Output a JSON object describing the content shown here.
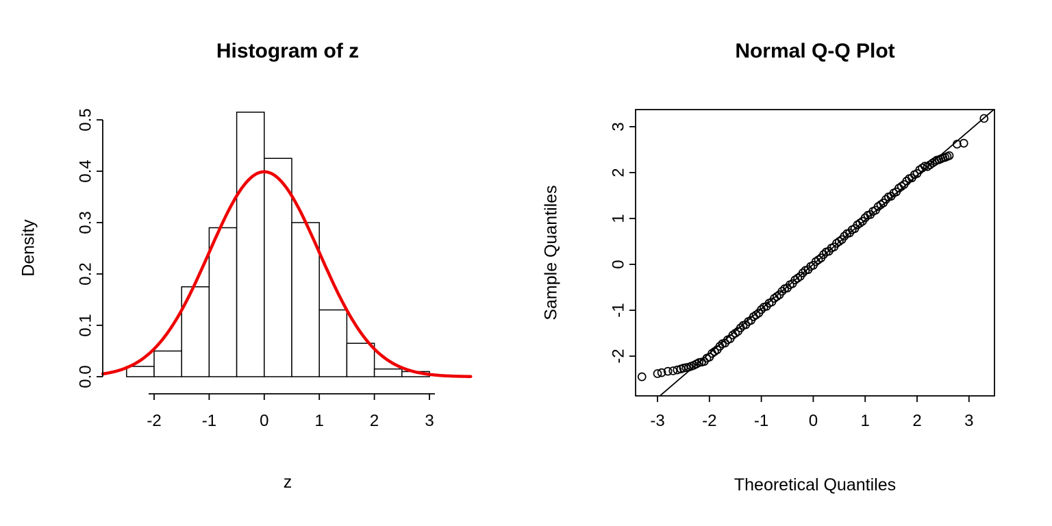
{
  "page": {
    "background": "#ffffff"
  },
  "chart_data": [
    {
      "type": "bar",
      "subtype": "histogram-with-density-curve",
      "title": "Histogram of z",
      "xlabel": "z",
      "ylabel": "Density",
      "xlim": [
        -2.93,
        3.78
      ],
      "ylim": [
        0,
        0.533
      ],
      "x_ticks": [
        -2,
        -1,
        0,
        1,
        2,
        3
      ],
      "x_tick_labels": [
        "-2",
        "-1",
        "0",
        "1",
        "2",
        "3"
      ],
      "y_ticks": [
        0,
        0.1,
        0.2,
        0.3,
        0.4,
        0.5
      ],
      "y_tick_labels": [
        "0.0",
        "0.1",
        "0.2",
        "0.3",
        "0.4",
        "0.5"
      ],
      "bar_fill": "#ffffff",
      "bar_stroke": "#000000",
      "bins": [
        [
          -2.5,
          -2.0,
          0.02
        ],
        [
          -2.0,
          -1.5,
          0.05
        ],
        [
          -1.5,
          -1.0,
          0.175
        ],
        [
          -1.0,
          -0.5,
          0.29
        ],
        [
          -0.5,
          0.0,
          0.515
        ],
        [
          0.0,
          0.5,
          0.425
        ],
        [
          0.5,
          1.0,
          0.3
        ],
        [
          1.0,
          1.5,
          0.13
        ],
        [
          1.5,
          2.0,
          0.065
        ],
        [
          2.0,
          2.5,
          0.015
        ],
        [
          2.5,
          3.0,
          0.01
        ]
      ],
      "curve": {
        "shape": "normal-density",
        "mean": 0,
        "sd": 1,
        "peak_density": 0.399,
        "color": "#ee0000"
      }
    },
    {
      "type": "scatter",
      "subtype": "qq-plot",
      "title": "Normal Q-Q Plot",
      "xlabel": "Theoretical Quantiles",
      "ylabel": "Sample Quantiles",
      "xlim": [
        -3.42,
        3.49
      ],
      "ylim": [
        -2.87,
        3.37
      ],
      "x_ticks": [
        -3,
        -2,
        -1,
        0,
        1,
        2,
        3
      ],
      "x_tick_labels": [
        "-3",
        "-2",
        "-1",
        "0",
        "1",
        "2",
        "3"
      ],
      "y_ticks": [
        -2,
        -1,
        0,
        1,
        2,
        3
      ],
      "y_tick_labels": [
        "-2",
        "-1",
        "0",
        "1",
        "2",
        "3"
      ],
      "marker": "open-circle",
      "marker_color": "#000000",
      "ref_line": {
        "slope": 0.97,
        "intercept": 0,
        "color": "#000000"
      },
      "points": [
        [
          -3.3,
          -2.45
        ],
        [
          -3.0,
          -2.38
        ],
        [
          -2.92,
          -2.36
        ],
        [
          -2.8,
          -2.33
        ],
        [
          -2.7,
          -2.32
        ],
        [
          -2.62,
          -2.3
        ],
        [
          -2.55,
          -2.28
        ],
        [
          -2.5,
          -2.26
        ],
        [
          -2.45,
          -2.25
        ],
        [
          -2.4,
          -2.24
        ],
        [
          -2.35,
          -2.22
        ],
        [
          -2.3,
          -2.2
        ],
        [
          -2.25,
          -2.17
        ],
        [
          -2.2,
          -2.14
        ],
        [
          -2.15,
          -2.13
        ],
        [
          -2.1,
          -2.115
        ],
        [
          -2.05,
          -2.045
        ],
        [
          -2.0,
          -2.02
        ],
        [
          -1.95,
          -1.94
        ],
        [
          -1.9,
          -1.9
        ],
        [
          -1.85,
          -1.86
        ],
        [
          -1.8,
          -1.785
        ],
        [
          -1.75,
          -1.73
        ],
        [
          -1.7,
          -1.715
        ],
        [
          -1.65,
          -1.645
        ],
        [
          -1.6,
          -1.62
        ],
        [
          -1.55,
          -1.54
        ],
        [
          -1.5,
          -1.5
        ],
        [
          -1.45,
          -1.46
        ],
        [
          -1.4,
          -1.385
        ],
        [
          -1.35,
          -1.33
        ],
        [
          -1.3,
          -1.315
        ],
        [
          -1.25,
          -1.245
        ],
        [
          -1.2,
          -1.22
        ],
        [
          -1.15,
          -1.14
        ],
        [
          -1.1,
          -1.1
        ],
        [
          -1.05,
          -1.06
        ],
        [
          -1.0,
          -0.985
        ],
        [
          -0.95,
          -0.93
        ],
        [
          -0.9,
          -0.915
        ],
        [
          -0.85,
          -0.845
        ],
        [
          -0.8,
          -0.82
        ],
        [
          -0.75,
          -0.74
        ],
        [
          -0.7,
          -0.7
        ],
        [
          -0.65,
          -0.66
        ],
        [
          -0.6,
          -0.585
        ],
        [
          -0.55,
          -0.53
        ],
        [
          -0.5,
          -0.515
        ],
        [
          -0.45,
          -0.445
        ],
        [
          -0.4,
          -0.42
        ],
        [
          -0.35,
          -0.34
        ],
        [
          -0.3,
          -0.3
        ],
        [
          -0.25,
          -0.26
        ],
        [
          -0.2,
          -0.185
        ],
        [
          -0.15,
          -0.13
        ],
        [
          -0.1,
          -0.115
        ],
        [
          -0.05,
          -0.045
        ],
        [
          0.0,
          -0.02
        ],
        [
          0.05,
          0.06
        ],
        [
          0.1,
          0.1
        ],
        [
          0.15,
          0.14
        ],
        [
          0.2,
          0.215
        ],
        [
          0.25,
          0.27
        ],
        [
          0.3,
          0.285
        ],
        [
          0.35,
          0.355
        ],
        [
          0.4,
          0.38
        ],
        [
          0.45,
          0.46
        ],
        [
          0.5,
          0.5
        ],
        [
          0.55,
          0.54
        ],
        [
          0.6,
          0.615
        ],
        [
          0.65,
          0.67
        ],
        [
          0.7,
          0.685
        ],
        [
          0.75,
          0.755
        ],
        [
          0.8,
          0.78
        ],
        [
          0.85,
          0.86
        ],
        [
          0.9,
          0.9
        ],
        [
          0.95,
          0.94
        ],
        [
          1.0,
          1.015
        ],
        [
          1.05,
          1.07
        ],
        [
          1.1,
          1.085
        ],
        [
          1.15,
          1.155
        ],
        [
          1.2,
          1.18
        ],
        [
          1.25,
          1.26
        ],
        [
          1.3,
          1.3
        ],
        [
          1.35,
          1.34
        ],
        [
          1.4,
          1.415
        ],
        [
          1.45,
          1.47
        ],
        [
          1.5,
          1.485
        ],
        [
          1.55,
          1.555
        ],
        [
          1.6,
          1.58
        ],
        [
          1.65,
          1.66
        ],
        [
          1.7,
          1.7
        ],
        [
          1.75,
          1.74
        ],
        [
          1.8,
          1.815
        ],
        [
          1.85,
          1.87
        ],
        [
          1.9,
          1.885
        ],
        [
          1.95,
          1.955
        ],
        [
          2.0,
          1.98
        ],
        [
          2.05,
          2.06
        ],
        [
          2.1,
          2.1
        ],
        [
          2.15,
          2.14
        ],
        [
          2.2,
          2.13
        ],
        [
          2.25,
          2.17
        ],
        [
          2.3,
          2.21
        ],
        [
          2.34,
          2.24
        ],
        [
          2.38,
          2.27
        ],
        [
          2.42,
          2.28
        ],
        [
          2.46,
          2.3
        ],
        [
          2.5,
          2.32
        ],
        [
          2.54,
          2.33
        ],
        [
          2.58,
          2.35
        ],
        [
          2.62,
          2.37
        ],
        [
          2.77,
          2.62
        ],
        [
          2.9,
          2.64
        ],
        [
          3.29,
          3.18
        ]
      ]
    }
  ]
}
